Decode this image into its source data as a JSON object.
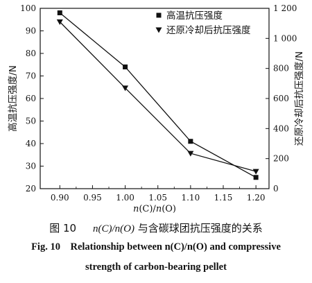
{
  "chart_data": {
    "type": "line",
    "x": [
      0.9,
      1.0,
      1.1,
      1.2
    ],
    "xlabel": "n(C)/n(O)",
    "xlim": [
      0.87,
      1.22
    ],
    "xticks": [
      "0.90",
      "0.95",
      "1.00",
      "1.05",
      "1.10",
      "1.15",
      "1.20"
    ],
    "ylabel_left": "高温抗压强度/N",
    "ylim_left": [
      20,
      100
    ],
    "yticks_left": [
      "20",
      "30",
      "40",
      "50",
      "60",
      "70",
      "80",
      "90",
      "100"
    ],
    "ylabel_right": "还原冷却后抗压强度/N",
    "ylim_right": [
      0,
      1200
    ],
    "yticks_right": [
      "0",
      "200",
      "400",
      "600",
      "800",
      "1 000",
      "1 200"
    ],
    "series": [
      {
        "name": "高温抗压强度",
        "axis": "left",
        "marker": "square",
        "values": [
          98,
          74,
          41,
          25
        ]
      },
      {
        "name": "还原冷却后抗压强度",
        "axis": "right",
        "marker": "triangle-down",
        "values": [
          1110,
          670,
          235,
          115
        ]
      }
    ],
    "legend_position": "top-right",
    "grid": false,
    "color": "#111111"
  },
  "caption": {
    "zh_label": "图 10",
    "zh_formula": "n(C)/n(O)",
    "zh_text": " 与含碳球团抗压强度的关系",
    "en_label": "Fig. 10",
    "en_text_1": "Relationship between n(C)/n(O) and compressive",
    "en_text_2": "strength of carbon-bearing pellet"
  }
}
